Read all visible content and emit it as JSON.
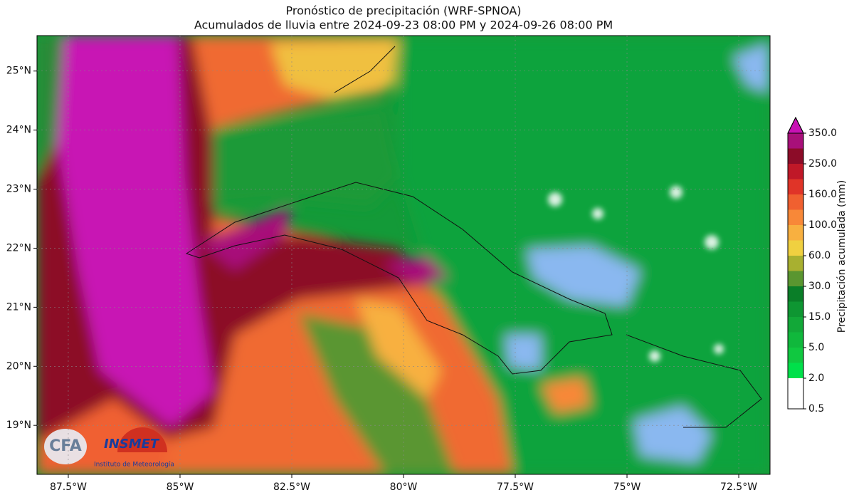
{
  "title": "Pronóstico de precipitación (WRF-SPNOA)",
  "subtitle": "Acumulados de lluvia entre 2024-09-23 08:00 PM y 2024-09-26 08:00 PM",
  "map": {
    "xlim": [
      -88.2,
      -71.8
    ],
    "ylim": [
      18.17,
      25.6
    ],
    "xticks": [
      {
        "value": -87.5,
        "label": "87.5°W"
      },
      {
        "value": -85,
        "label": "85°W"
      },
      {
        "value": -82.5,
        "label": "82.5°W"
      },
      {
        "value": -80,
        "label": "80°W"
      },
      {
        "value": -77.5,
        "label": "77.5°W"
      },
      {
        "value": -75,
        "label": "75°W"
      },
      {
        "value": -72.5,
        "label": "72.5°W"
      }
    ],
    "yticks": [
      {
        "value": 19,
        "label": "19°N"
      },
      {
        "value": 20,
        "label": "20°N"
      },
      {
        "value": 21,
        "label": "21°N"
      },
      {
        "value": 22,
        "label": "22°N"
      },
      {
        "value": 23,
        "label": "23°N"
      },
      {
        "value": 24,
        "label": "24°N"
      },
      {
        "value": 25,
        "label": "25°N"
      }
    ],
    "grid": true
  },
  "colorbar": {
    "label": "Precipitación acumulada (mm)",
    "ticks": [
      {
        "value": 0.5,
        "label": "0.5"
      },
      {
        "value": 2,
        "label": "2.0"
      },
      {
        "value": 5,
        "label": "5.0"
      },
      {
        "value": 15,
        "label": "15.0"
      },
      {
        "value": 30,
        "label": "30.0"
      },
      {
        "value": 60,
        "label": "60.0"
      },
      {
        "value": 100,
        "label": "100.0"
      },
      {
        "value": 160,
        "label": "160.0"
      },
      {
        "value": 250,
        "label": "250.0"
      },
      {
        "value": 350,
        "label": "350.0"
      }
    ],
    "colors": [
      "#ffffff",
      "#ffffff",
      "#00e04a",
      "#10c840",
      "#10b83c",
      "#12a838",
      "#0e9632",
      "#0a7e28",
      "#5a9630",
      "#a8b030",
      "#f0d040",
      "#f8b040",
      "#f88838",
      "#f06030",
      "#e03428",
      "#c01828",
      "#8c0c28",
      "#a8107a"
    ],
    "extend_color": "#c812b4"
  },
  "logos": {
    "cfa": "CFA",
    "insmet": "INSMET",
    "insmet_sub": "Instituto de Meteorología"
  }
}
